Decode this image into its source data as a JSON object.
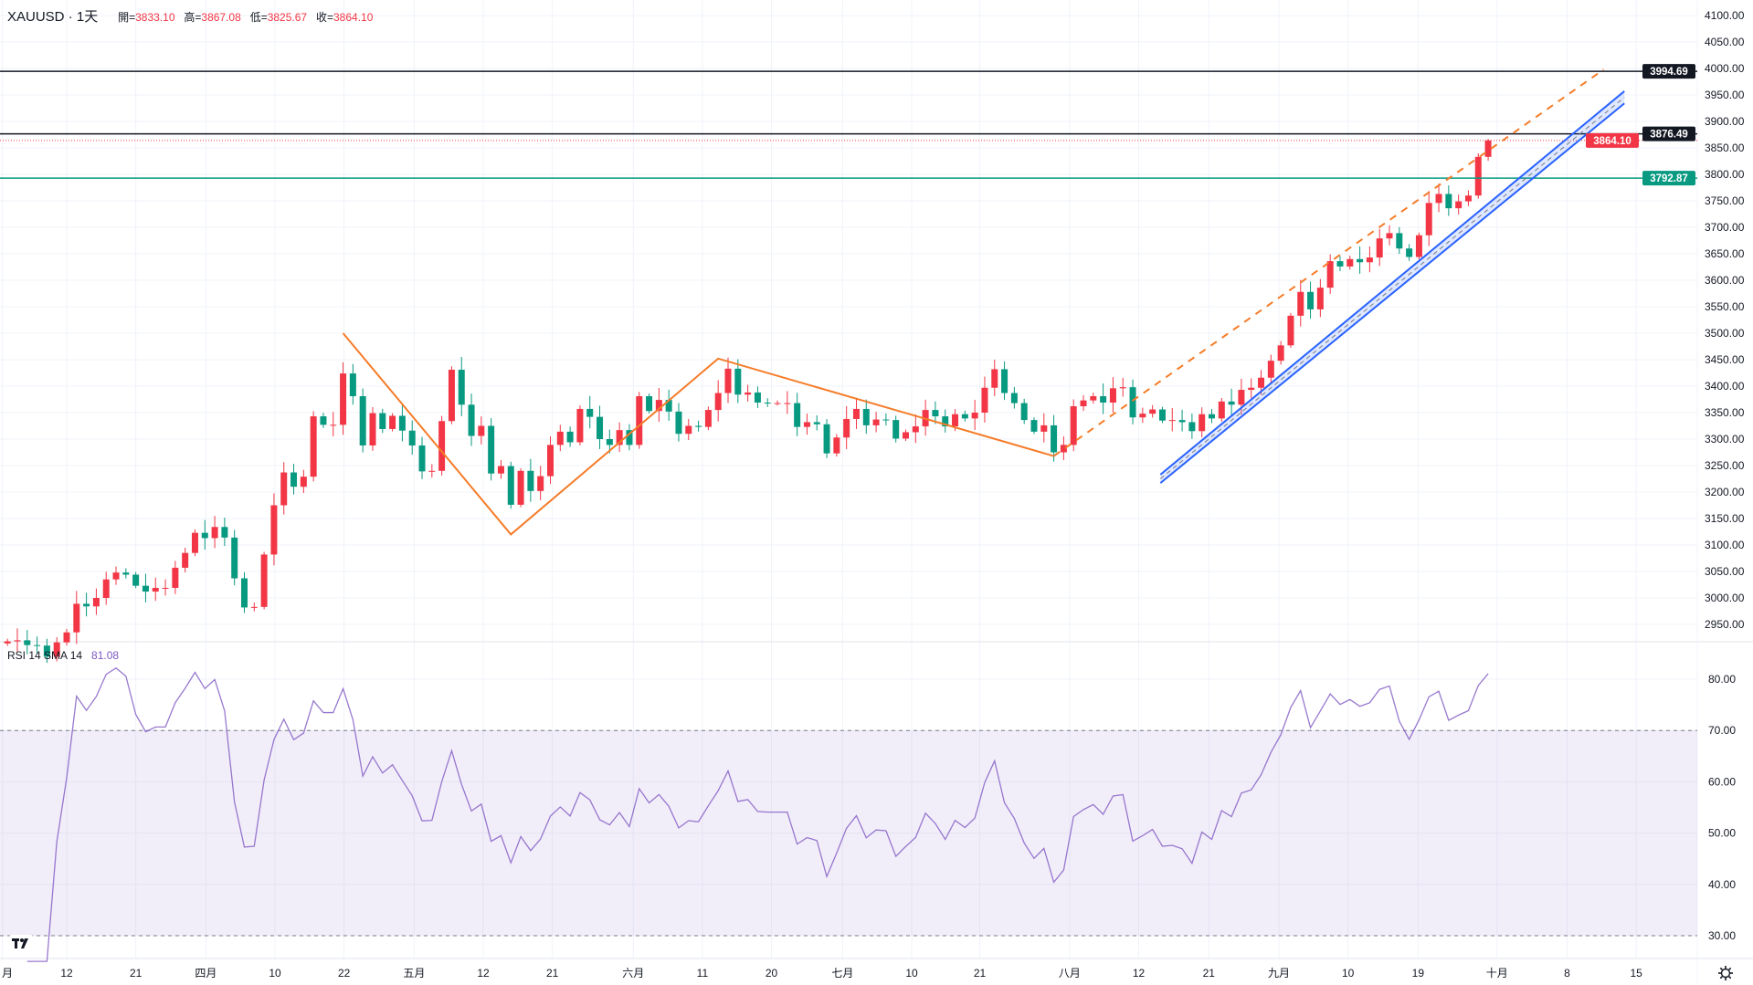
{
  "header": {
    "symbol": "XAUUSD",
    "interval": "1天",
    "open_label": "開=",
    "open": "3833.10",
    "high_label": "高=",
    "high": "3867.08",
    "low_label": "低=",
    "low": "3825.67",
    "close_label": "收=",
    "close": "3864.10"
  },
  "rsi_header": {
    "label": "RSI 14 SMA 14",
    "value": "81.08"
  },
  "colors": {
    "up": "#f23645",
    "down": "#089981",
    "rsi": "#7e57c2",
    "zigzag": "#f57c29",
    "channel": "#2962ff",
    "teal": "#089981",
    "black": "#131722"
  },
  "chart_data": [
    {
      "type": "candlestick",
      "title": "XAUUSD · 1天",
      "first_bar": "2025-03-04",
      "last_bar": "2025-09-30",
      "closes": [
        2918,
        2920,
        2911,
        2910,
        2889,
        2916,
        2935,
        2989,
        2984,
        3000,
        3035,
        3048,
        3044,
        3023,
        3012,
        3019,
        3019,
        3057,
        3085,
        3123,
        3113,
        3134,
        3114,
        3037,
        2982,
        2983,
        3082,
        3175,
        3237,
        3210,
        3229,
        3343,
        3327,
        3327,
        3424,
        3381,
        3288,
        3349,
        3319,
        3344,
        3316,
        3288,
        3239,
        3240,
        3334,
        3431,
        3365,
        3306,
        3325,
        3235,
        3249,
        3176,
        3240,
        3202,
        3230,
        3289,
        3314,
        3294,
        3357,
        3342,
        3300,
        3289,
        3317,
        3289,
        3381,
        3353,
        3374,
        3352,
        3310,
        3325,
        3323,
        3355,
        3387,
        3433,
        3384,
        3388,
        3369,
        3368,
        3368,
        3368,
        3323,
        3332,
        3328,
        3273,
        3303,
        3338,
        3357,
        3326,
        3337,
        3336,
        3301,
        3313,
        3324,
        3355,
        3343,
        3324,
        3347,
        3339,
        3350,
        3397,
        3432,
        3387,
        3368,
        3336,
        3314,
        3326,
        3275,
        3289,
        3362,
        3373,
        3381,
        3369,
        3396,
        3398,
        3341,
        3348,
        3356,
        3335,
        3336,
        3332,
        3315,
        3347,
        3339,
        3371,
        3365,
        3393,
        3397,
        3416,
        3448,
        3477,
        3533,
        3578,
        3545,
        3586,
        3636,
        3626,
        3640,
        3634,
        3643,
        3679,
        3689,
        3660,
        3644,
        3685,
        3746,
        3763,
        3736,
        3749,
        3760,
        3833,
        3864.1
      ],
      "last_bar_ohlc": [
        3833.1,
        3867.08,
        3825.67,
        3864.1
      ],
      "ylim": [
        2925,
        4110
      ],
      "y_ticks": [
        "4100.00",
        "4050.00",
        "4000.00",
        "3950.00",
        "3900.00",
        "3850.00",
        "3800.00",
        "3750.00",
        "3700.00",
        "3650.00",
        "3600.00",
        "3550.00",
        "3500.00",
        "3450.00",
        "3400.00",
        "3350.00",
        "3300.00",
        "3250.00",
        "3200.00",
        "3150.00",
        "3100.00",
        "3050.00",
        "3000.00",
        "2950.00"
      ],
      "x_ticks": [
        {
          "label": "月",
          "bar": -0.5
        },
        {
          "label": "12",
          "bar": 6
        },
        {
          "label": "21",
          "bar": 13
        },
        {
          "label": "四月",
          "bar": 20.1
        },
        {
          "label": "10",
          "bar": 27.1
        },
        {
          "label": "22",
          "bar": 34.1
        },
        {
          "label": "五月",
          "bar": 41.2
        },
        {
          "label": "12",
          "bar": 48.2
        },
        {
          "label": "21",
          "bar": 55.2
        },
        {
          "label": "六月",
          "bar": 63.4
        },
        {
          "label": "11",
          "bar": 70.4
        },
        {
          "label": "20",
          "bar": 77.4
        },
        {
          "label": "七月",
          "bar": 84.6
        },
        {
          "label": "10",
          "bar": 91.6
        },
        {
          "label": "21",
          "bar": 98.5
        },
        {
          "label": "八月",
          "bar": 107.6
        },
        {
          "label": "12",
          "bar": 114.6
        },
        {
          "label": "21",
          "bar": 121.7
        },
        {
          "label": "九月",
          "bar": 128.8
        },
        {
          "label": "10",
          "bar": 135.8
        },
        {
          "label": "19",
          "bar": 142.9
        },
        {
          "label": "十月",
          "bar": 150.9
        },
        {
          "label": "8",
          "bar": 158
        },
        {
          "label": "15",
          "bar": 165
        }
      ],
      "horizontal_lines": [
        {
          "price": 3994.69,
          "label": "3994.69",
          "color": "#131722",
          "style": "solid"
        },
        {
          "price": 3876.49,
          "label": "3876.49",
          "color": "#131722",
          "style": "solid"
        },
        {
          "price": 3864.1,
          "label": "3864.10",
          "color": "#f23645",
          "style": "dotted"
        },
        {
          "price": 3792.87,
          "label": "3792.87",
          "color": "#089981",
          "style": "solid"
        }
      ],
      "zigzag": [
        [
          34,
          3500
        ],
        [
          51,
          3120
        ],
        [
          72,
          3452
        ],
        [
          106,
          3268
        ]
      ],
      "dashed_trend": [
        [
          106,
          3268
        ],
        [
          161.7,
          3998
        ]
      ],
      "channel": {
        "upper": [
          [
            116.8,
            3233
          ],
          [
            163.8,
            3957
          ]
        ],
        "lower": [
          [
            116.8,
            3217
          ],
          [
            163.8,
            3934
          ]
        ]
      }
    },
    {
      "type": "line",
      "title": "RSI 14 SMA 14",
      "period": 14,
      "last_value": 81.08,
      "ylim": [
        25,
        86
      ],
      "y_ticks": [
        "80.00",
        "70.00",
        "60.00",
        "50.00",
        "40.00",
        "30.00"
      ],
      "band": [
        30,
        70
      ]
    }
  ]
}
